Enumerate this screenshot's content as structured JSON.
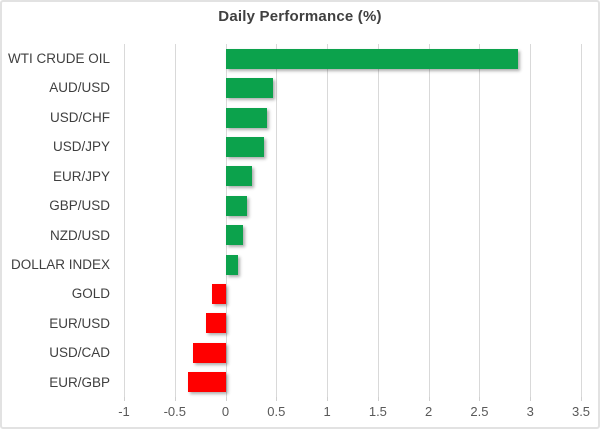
{
  "title": "Daily Performance (%)",
  "colors": {
    "positive_bar": "#0CA24C",
    "negative_bar": "#FF0000",
    "gridline": "#D9D9D9",
    "title_text": "#404040",
    "category_text": "#3F3F3F",
    "axis_text": "#595959",
    "frame_border": "#E2E2E2",
    "background": "#FFFFFF"
  },
  "chart_data": {
    "type": "bar",
    "orientation": "horizontal",
    "title": "Daily Performance (%)",
    "categories": [
      "WTI CRUDE OIL",
      "AUD/USD",
      "USD/CHF",
      "USD/JPY",
      "EUR/JPY",
      "GBP/USD",
      "NZD/USD",
      "DOLLAR INDEX",
      "GOLD",
      "EUR/USD",
      "USD/CAD",
      "EUR/GBP"
    ],
    "values": [
      2.88,
      0.47,
      0.41,
      0.38,
      0.26,
      0.21,
      0.17,
      0.12,
      -0.13,
      -0.19,
      -0.32,
      -0.37
    ],
    "xlabel": "",
    "ylabel": "",
    "xlim": [
      -1,
      3.5
    ],
    "xticks": [
      -1,
      -0.5,
      0,
      0.5,
      1,
      1.5,
      2,
      2.5,
      3,
      3.5
    ],
    "xtick_labels": [
      "-1",
      "-0.5",
      "0",
      "0.5",
      "1",
      "1.5",
      "2",
      "2.5",
      "3",
      "3.5"
    ],
    "grid": "vertical",
    "legend": "none"
  }
}
